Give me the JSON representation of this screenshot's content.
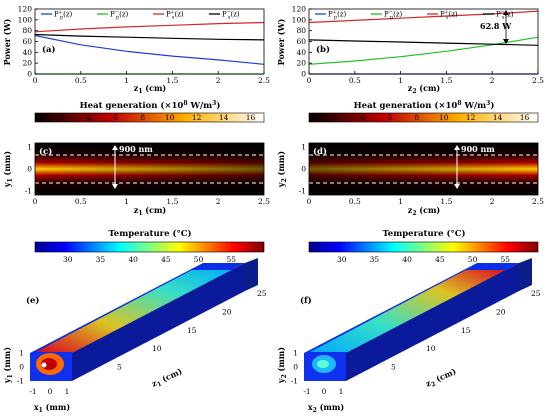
{
  "colors": {
    "blue": "#1f3fd6",
    "green": "#1fbf1f",
    "red": "#d62828",
    "black": "#000000"
  },
  "chart_data": [
    {
      "type": "line",
      "panel": "(a)",
      "xlabel": "z1 (cm)",
      "ylabel": "Power (W)",
      "xlim": [
        0,
        2.5
      ],
      "ylim": [
        0,
        120
      ],
      "xticks": [
        "0",
        "0.5",
        "1",
        "1.5",
        "2",
        "2.5"
      ],
      "yticks": [
        "0",
        "20",
        "40",
        "60",
        "80",
        "100",
        "120"
      ],
      "legend": [
        "P+p(z)",
        "P−p(z)",
        "P+s(z)",
        "P−s(z)"
      ],
      "x": [
        0,
        0.5,
        1.0,
        1.5,
        2.0,
        2.5
      ],
      "series": [
        {
          "name": "P+p(z)",
          "color": "blue",
          "values": [
            71,
            54,
            42,
            33,
            26,
            18
          ]
        },
        {
          "name": "P−p(z)",
          "color": "green",
          "values": [
            0,
            0,
            0,
            0,
            0,
            0
          ]
        },
        {
          "name": "P+s(z)",
          "color": "red",
          "values": [
            78,
            83,
            87,
            90,
            93,
            95
          ]
        },
        {
          "name": "P−s(z)",
          "color": "black",
          "values": [
            73,
            70,
            68,
            66,
            64,
            63
          ]
        }
      ]
    },
    {
      "type": "line",
      "panel": "(b)",
      "xlabel": "z2 (cm)",
      "ylabel": "Power (W)",
      "xlim": [
        0,
        2.5
      ],
      "ylim": [
        0,
        120
      ],
      "xticks": [
        "0",
        "0.5",
        "1",
        "1.5",
        "2",
        "2.5"
      ],
      "yticks": [
        "0",
        "20",
        "40",
        "60",
        "80",
        "100",
        "120"
      ],
      "legend": [
        "P+p(z)",
        "P−p(z)",
        "P+s(z)",
        "P−s(z)"
      ],
      "annotation": "62.8 W",
      "x": [
        0,
        0.5,
        1.0,
        1.5,
        2.0,
        2.5
      ],
      "series": [
        {
          "name": "P+p(z)",
          "color": "blue",
          "values": [
            0,
            0,
            0,
            0,
            0,
            0
          ]
        },
        {
          "name": "P−p(z)",
          "color": "green",
          "values": [
            18,
            24,
            32,
            42,
            54,
            68
          ]
        },
        {
          "name": "P+s(z)",
          "color": "red",
          "values": [
            95,
            99,
            103,
            107,
            111,
            116
          ]
        },
        {
          "name": "P−s(z)",
          "color": "black",
          "values": [
            63,
            61,
            59,
            57,
            55,
            53
          ]
        }
      ]
    },
    {
      "type": "heatmap",
      "panel": "(c)",
      "title": "Heat generation (×10⁸ W/m³)",
      "colorbar_ticks": [
        "2",
        "4",
        "6",
        "8",
        "10",
        "12",
        "14",
        "16"
      ],
      "xlabel": "z1 (cm)",
      "ylabel": "y1 (mm)",
      "xticks": [
        "0",
        "0.5",
        "1",
        "1.5",
        "2",
        "2.5"
      ],
      "yticks": [
        "1",
        "0",
        "-1"
      ],
      "annotation": "900 nm"
    },
    {
      "type": "heatmap",
      "panel": "(d)",
      "title": "Heat generation (×10⁸ W/m³)",
      "colorbar_ticks": [
        "2",
        "4",
        "6",
        "8",
        "10",
        "12",
        "14",
        "16"
      ],
      "xlabel": "z2 (cm)",
      "ylabel": "y2 (mm)",
      "xticks": [
        "0",
        "0.5",
        "1",
        "1.5",
        "2",
        "2.5"
      ],
      "yticks": [
        "1",
        "0",
        "-1"
      ],
      "annotation": "900 nm"
    },
    {
      "type": "heatmap",
      "panel": "(e)",
      "title": "Temperature (°C)",
      "colorbar_ticks": [
        "30",
        "35",
        "40",
        "45",
        "50",
        "55"
      ],
      "xlabel": "x1 (mm)",
      "ylabel": "y1 (mm)",
      "zlabel": "z1 (cm)",
      "xticks": [
        "-1",
        "0",
        "1"
      ],
      "yticks": [
        "1",
        "0",
        "-1"
      ],
      "zticks": [
        "5",
        "10",
        "15",
        "20",
        "25"
      ]
    },
    {
      "type": "heatmap",
      "panel": "(f)",
      "title": "Temperature (°C)",
      "colorbar_ticks": [
        "30",
        "35",
        "40",
        "45",
        "50",
        "55"
      ],
      "xlabel": "x2 (mm)",
      "ylabel": "y2 (mm)",
      "zlabel": "z2 (cm)",
      "xticks": [
        "-1",
        "0",
        "1"
      ],
      "yticks": [
        "1",
        "0",
        "-1"
      ],
      "zticks": [
        "5",
        "10",
        "15",
        "20",
        "25"
      ]
    }
  ]
}
